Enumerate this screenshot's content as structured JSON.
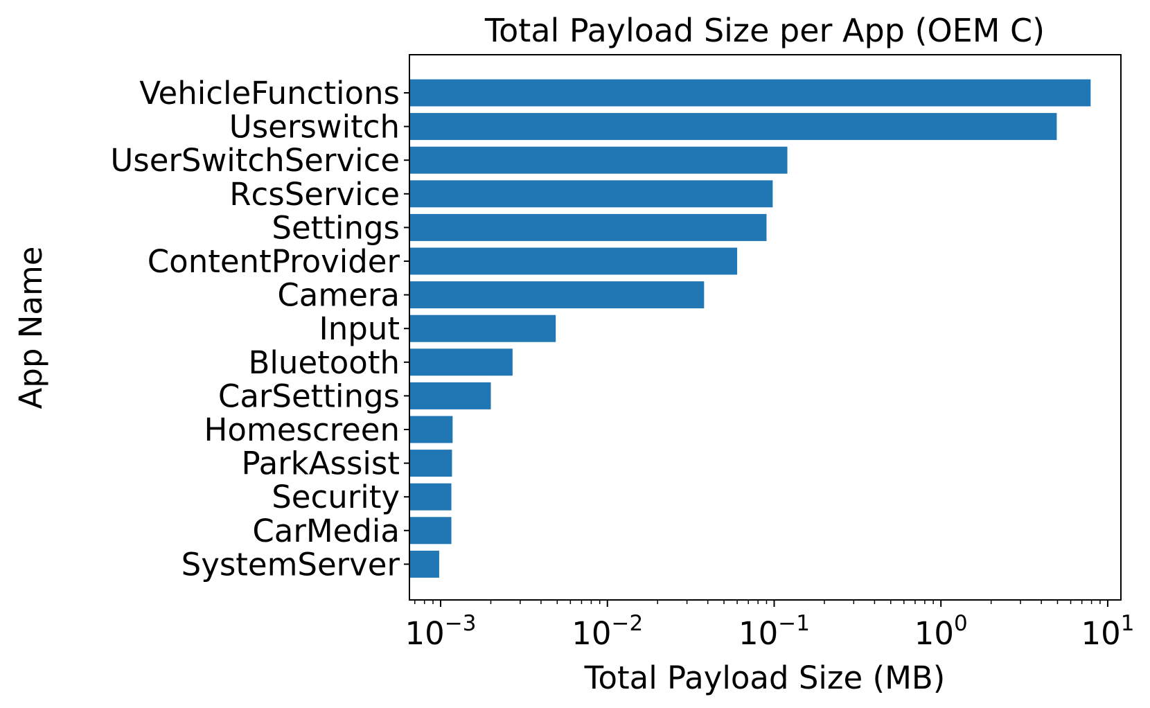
{
  "chart_data": {
    "type": "bar",
    "orientation": "horizontal",
    "title": "Total Payload Size per App (OEM C)",
    "xlabel": "Total Payload Size (MB)",
    "ylabel": "App Name",
    "x_scale": "log",
    "xlim": [
      0.00065,
      12
    ],
    "x_ticks": [
      {
        "value": 0.001,
        "base": "10",
        "exp": "−3"
      },
      {
        "value": 0.01,
        "base": "10",
        "exp": "−2"
      },
      {
        "value": 0.1,
        "base": "10",
        "exp": "−1"
      },
      {
        "value": 1,
        "base": "10",
        "exp": "0"
      },
      {
        "value": 10,
        "base": "10",
        "exp": "1"
      }
    ],
    "bar_color": "#2077b4",
    "grid": false,
    "categories": [
      "VehicleFunctions",
      "Userswitch",
      "UserSwitchService",
      "RcsService",
      "Settings",
      "ContentProvider",
      "Camera",
      "Input",
      "Bluetooth",
      "CarSettings",
      "Homescreen",
      "ParkAssist",
      "Security",
      "CarMedia",
      "SystemServer"
    ],
    "values": [
      7.9,
      4.95,
      0.12,
      0.098,
      0.09,
      0.06,
      0.038,
      0.0049,
      0.0027,
      0.002,
      0.00118,
      0.00117,
      0.00116,
      0.00116,
      0.00098
    ]
  }
}
